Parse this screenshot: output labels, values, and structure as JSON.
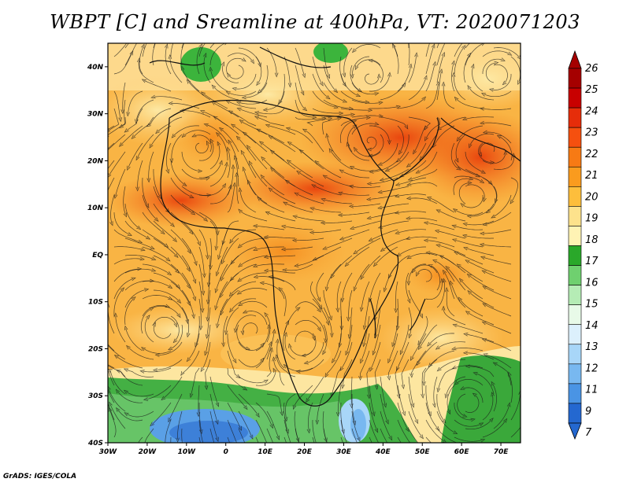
{
  "title": "WBPT [C] and Sreamline at 400hPa, VT: 2020071203",
  "credit": "GrADS: IGES/COLA",
  "map": {
    "lon_ticks": [
      "30W",
      "20W",
      "10W",
      "0",
      "10E",
      "20E",
      "30E",
      "40E",
      "50E",
      "60E",
      "70E"
    ],
    "lat_ticks": [
      "40N",
      "30N",
      "20N",
      "10N",
      "EQ",
      "10S",
      "20S",
      "30S",
      "40S"
    ],
    "lon_range": [
      -30,
      75
    ],
    "lat_range": [
      -40,
      45
    ]
  },
  "colorbar": {
    "labels": [
      "26",
      "25",
      "24",
      "23",
      "22",
      "21",
      "20",
      "19",
      "18",
      "17",
      "16",
      "15",
      "14",
      "13",
      "12",
      "11",
      "9",
      "7"
    ],
    "colors": [
      "#a50000",
      "#c80000",
      "#e62d0a",
      "#f5500f",
      "#f77a14",
      "#fa9b1e",
      "#fdbe3c",
      "#fde28c",
      "#fff3b4",
      "#2aa82a",
      "#6fd06f",
      "#b5ecb5",
      "#e8fae8",
      "#dcf0fc",
      "#a8d6f8",
      "#78b8f0",
      "#4a94e4",
      "#2468d0"
    ]
  }
}
